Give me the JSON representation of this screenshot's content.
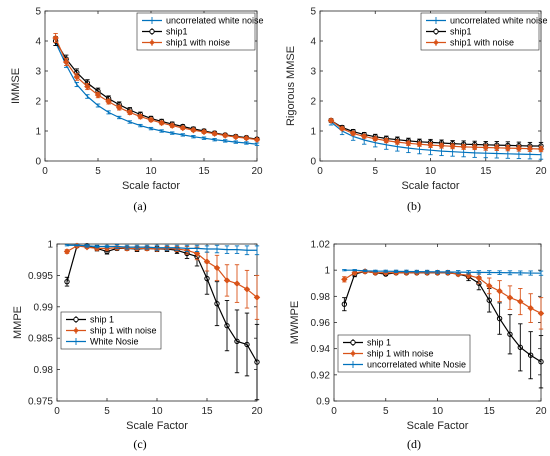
{
  "figure": {
    "panels": [
      "(a)",
      "(b)",
      "(c)",
      "(d)"
    ]
  },
  "colors": {
    "white_noise": "#0072BD",
    "ship": "#000000",
    "ship_noise": "#D95319"
  },
  "chart_data": [
    {
      "type": "line",
      "panel": "(a)",
      "xlabel": "Scale factor",
      "ylabel": "IMMSE",
      "xlim": [
        0,
        20
      ],
      "ylim": [
        0,
        5
      ],
      "xticks": [
        0,
        5,
        10,
        15,
        20
      ],
      "yticks": [
        0,
        1,
        2,
        3,
        4,
        5
      ],
      "legend_position": "top-right",
      "x": [
        1,
        2,
        3,
        4,
        5,
        6,
        7,
        8,
        9,
        10,
        11,
        12,
        13,
        14,
        15,
        16,
        17,
        18,
        19,
        20
      ],
      "series": [
        {
          "name": "uncorrelated white noise",
          "color": "#0072BD",
          "marker": "none",
          "values": [
            3.95,
            3.2,
            2.55,
            2.15,
            1.85,
            1.62,
            1.45,
            1.3,
            1.18,
            1.08,
            1.0,
            0.93,
            0.87,
            0.81,
            0.76,
            0.71,
            0.67,
            0.63,
            0.6,
            0.56
          ],
          "error": [
            0.1,
            0.08,
            0.07,
            0.06,
            0.05,
            0.05,
            0.04,
            0.04,
            0.04,
            0.04,
            0.04,
            0.04,
            0.04,
            0.04,
            0.04,
            0.04,
            0.04,
            0.04,
            0.04,
            0.04
          ]
        },
        {
          "name": "ship1",
          "color": "#000000",
          "marker": "circle",
          "values": [
            4.0,
            3.4,
            2.95,
            2.6,
            2.33,
            2.08,
            1.88,
            1.7,
            1.55,
            1.42,
            1.32,
            1.23,
            1.15,
            1.07,
            1.0,
            0.93,
            0.87,
            0.82,
            0.78,
            0.73
          ],
          "error": [
            0.15,
            0.13,
            0.12,
            0.11,
            0.1,
            0.09,
            0.09,
            0.08,
            0.08,
            0.07,
            0.07,
            0.07,
            0.06,
            0.06,
            0.06,
            0.06,
            0.05,
            0.05,
            0.05,
            0.05
          ]
        },
        {
          "name": "ship1 with noise",
          "color": "#D95319",
          "marker": "diamond",
          "values": [
            4.1,
            3.3,
            2.8,
            2.48,
            2.2,
            1.98,
            1.78,
            1.62,
            1.48,
            1.37,
            1.27,
            1.18,
            1.1,
            1.03,
            0.97,
            0.91,
            0.85,
            0.8,
            0.76,
            0.71
          ],
          "error": [
            0.15,
            0.12,
            0.11,
            0.1,
            0.09,
            0.08,
            0.08,
            0.07,
            0.07,
            0.06,
            0.06,
            0.06,
            0.05,
            0.05,
            0.05,
            0.05,
            0.05,
            0.04,
            0.04,
            0.04
          ]
        }
      ]
    },
    {
      "type": "line",
      "panel": "(b)",
      "xlabel": "Scale factor",
      "ylabel": "Rigorous MMSE",
      "xlim": [
        0,
        20
      ],
      "ylim": [
        0,
        5
      ],
      "xticks": [
        0,
        5,
        10,
        15,
        20
      ],
      "yticks": [
        0,
        1,
        2,
        3,
        4,
        5
      ],
      "legend_position": "top-right",
      "x": [
        1,
        2,
        3,
        4,
        5,
        6,
        7,
        8,
        9,
        10,
        11,
        12,
        13,
        14,
        15,
        16,
        17,
        18,
        19,
        20
      ],
      "series": [
        {
          "name": "uncorrelated white noise",
          "color": "#0072BD",
          "marker": "none",
          "values": [
            1.3,
            1.0,
            0.82,
            0.7,
            0.61,
            0.54,
            0.48,
            0.43,
            0.39,
            0.36,
            0.33,
            0.31,
            0.29,
            0.27,
            0.26,
            0.25,
            0.24,
            0.23,
            0.22,
            0.21
          ],
          "error": [
            0.1,
            0.12,
            0.13,
            0.14,
            0.14,
            0.15,
            0.15,
            0.15,
            0.15,
            0.15,
            0.15,
            0.15,
            0.15,
            0.15,
            0.15,
            0.15,
            0.15,
            0.15,
            0.15,
            0.15
          ]
        },
        {
          "name": "ship1",
          "color": "#000000",
          "marker": "circle",
          "values": [
            1.35,
            1.12,
            0.98,
            0.88,
            0.81,
            0.75,
            0.71,
            0.67,
            0.64,
            0.62,
            0.6,
            0.58,
            0.56,
            0.55,
            0.54,
            0.53,
            0.52,
            0.51,
            0.5,
            0.5
          ],
          "error": [
            0.06,
            0.06,
            0.07,
            0.07,
            0.08,
            0.08,
            0.09,
            0.09,
            0.09,
            0.1,
            0.1,
            0.1,
            0.11,
            0.11,
            0.11,
            0.12,
            0.12,
            0.12,
            0.12,
            0.12
          ]
        },
        {
          "name": "ship1 with noise",
          "color": "#D95319",
          "marker": "diamond",
          "values": [
            1.35,
            1.08,
            0.92,
            0.82,
            0.74,
            0.68,
            0.63,
            0.59,
            0.56,
            0.53,
            0.51,
            0.49,
            0.47,
            0.46,
            0.45,
            0.44,
            0.43,
            0.42,
            0.41,
            0.4
          ],
          "error": [
            0.05,
            0.05,
            0.06,
            0.06,
            0.06,
            0.07,
            0.07,
            0.07,
            0.07,
            0.08,
            0.08,
            0.08,
            0.08,
            0.08,
            0.09,
            0.09,
            0.09,
            0.09,
            0.09,
            0.09
          ]
        }
      ]
    },
    {
      "type": "line",
      "panel": "(c)",
      "xlabel": "Scale Factor",
      "ylabel": "MMPE",
      "xlim": [
        0,
        20
      ],
      "ylim": [
        0.975,
        1
      ],
      "xticks": [
        0,
        5,
        10,
        15,
        20
      ],
      "yticks": [
        0.975,
        0.98,
        0.985,
        0.99,
        0.995,
        1
      ],
      "ytick_labels": [
        "0.975",
        "0.98",
        "0.985",
        "0.99",
        "0.995",
        "1"
      ],
      "legend_position": "bottom-left",
      "x": [
        1,
        2,
        3,
        4,
        5,
        6,
        7,
        8,
        9,
        10,
        11,
        12,
        13,
        14,
        15,
        16,
        17,
        18,
        19,
        20
      ],
      "series": [
        {
          "name": "ship 1",
          "color": "#000000",
          "marker": "circle",
          "values": [
            0.994,
            0.9997,
            0.9997,
            0.9993,
            0.9988,
            0.9993,
            0.9993,
            0.9992,
            0.9993,
            0.9992,
            0.9992,
            0.999,
            0.9985,
            0.998,
            0.9945,
            0.9905,
            0.987,
            0.9845,
            0.984,
            0.9812
          ],
          "error": [
            0.0007,
            0.0002,
            0.0003,
            0.0004,
            0.0004,
            0.0003,
            0.0003,
            0.0004,
            0.0003,
            0.0004,
            0.0004,
            0.0005,
            0.0008,
            0.0015,
            0.0025,
            0.0035,
            0.004,
            0.005,
            0.005,
            0.006
          ]
        },
        {
          "name": "ship 1 with noise",
          "color": "#D95319",
          "marker": "diamond",
          "values": [
            0.9988,
            0.9997,
            0.9995,
            0.9993,
            0.9993,
            0.9994,
            0.9993,
            0.9993,
            0.9993,
            0.9992,
            0.9993,
            0.9992,
            0.999,
            0.9985,
            0.9972,
            0.9962,
            0.9942,
            0.9937,
            0.9928,
            0.9915
          ],
          "error": [
            0.0003,
            0.0002,
            0.0002,
            0.0003,
            0.0003,
            0.0003,
            0.0003,
            0.0003,
            0.0003,
            0.0003,
            0.0003,
            0.0004,
            0.0006,
            0.001,
            0.0015,
            0.002,
            0.0025,
            0.003,
            0.003,
            0.0035
          ]
        },
        {
          "name": "White Nosie",
          "color": "#0072BD",
          "marker": "none",
          "values": [
            0.9998,
            0.9998,
            0.9997,
            0.9996,
            0.9996,
            0.9996,
            0.9995,
            0.9995,
            0.9995,
            0.9994,
            0.9994,
            0.9994,
            0.9993,
            0.9993,
            0.9992,
            0.9992,
            0.9991,
            0.9991,
            0.999,
            0.999
          ],
          "error": [
            0.0001,
            0.0001,
            0.0002,
            0.0002,
            0.0002,
            0.0003,
            0.0003,
            0.0003,
            0.0003,
            0.0004,
            0.0004,
            0.0004,
            0.0005,
            0.0005,
            0.0005,
            0.0006,
            0.0006,
            0.0006,
            0.0007,
            0.0007
          ]
        }
      ]
    },
    {
      "type": "line",
      "panel": "(d)",
      "xlabel": "Scale Factor",
      "ylabel": "MWMPE",
      "xlim": [
        0,
        20
      ],
      "ylim": [
        0.9,
        1.02
      ],
      "xticks": [
        0,
        5,
        10,
        15,
        20
      ],
      "yticks": [
        0.9,
        0.92,
        0.94,
        0.96,
        0.98,
        1,
        1.02
      ],
      "ytick_labels": [
        "0.9",
        "0.92",
        "0.94",
        "0.96",
        "0.98",
        "1",
        "1.02"
      ],
      "legend_position": "bottom-left",
      "x": [
        1,
        2,
        3,
        4,
        5,
        6,
        7,
        8,
        9,
        10,
        11,
        12,
        13,
        14,
        15,
        16,
        17,
        18,
        19,
        20
      ],
      "series": [
        {
          "name": "ship 1",
          "color": "#000000",
          "marker": "circle",
          "values": [
            0.974,
            0.997,
            0.999,
            0.998,
            0.997,
            0.998,
            0.998,
            0.998,
            0.998,
            0.998,
            0.998,
            0.997,
            0.995,
            0.99,
            0.977,
            0.963,
            0.951,
            0.941,
            0.935,
            0.93
          ],
          "error": [
            0.005,
            0.002,
            0.001,
            0.001,
            0.001,
            0.001,
            0.001,
            0.001,
            0.001,
            0.001,
            0.001,
            0.001,
            0.003,
            0.005,
            0.009,
            0.012,
            0.015,
            0.018,
            0.018,
            0.02
          ]
        },
        {
          "name": "ship 1 with noise",
          "color": "#D95319",
          "marker": "diamond",
          "values": [
            0.993,
            0.998,
            0.999,
            0.998,
            0.998,
            0.998,
            0.998,
            0.998,
            0.998,
            0.998,
            0.998,
            0.997,
            0.996,
            0.994,
            0.988,
            0.984,
            0.979,
            0.976,
            0.971,
            0.967
          ],
          "error": [
            0.002,
            0.001,
            0.001,
            0.001,
            0.001,
            0.001,
            0.001,
            0.001,
            0.001,
            0.001,
            0.001,
            0.001,
            0.002,
            0.004,
            0.006,
            0.008,
            0.009,
            0.01,
            0.011,
            0.012
          ]
        },
        {
          "name": "uncorrelated white Nosie",
          "color": "#0072BD",
          "marker": "none",
          "values": [
            1.0,
            1.0,
            0.9995,
            0.9993,
            0.9992,
            0.9991,
            0.999,
            0.9989,
            0.9988,
            0.9987,
            0.9986,
            0.9985,
            0.9984,
            0.9983,
            0.9982,
            0.9981,
            0.998,
            0.9979,
            0.9978,
            0.9977
          ],
          "error": [
            0.0005,
            0.0005,
            0.0006,
            0.0007,
            0.0008,
            0.0009,
            0.001,
            0.001,
            0.0011,
            0.0011,
            0.0012,
            0.0012,
            0.0013,
            0.0013,
            0.0014,
            0.0014,
            0.0015,
            0.0015,
            0.0016,
            0.0016
          ]
        }
      ]
    }
  ]
}
